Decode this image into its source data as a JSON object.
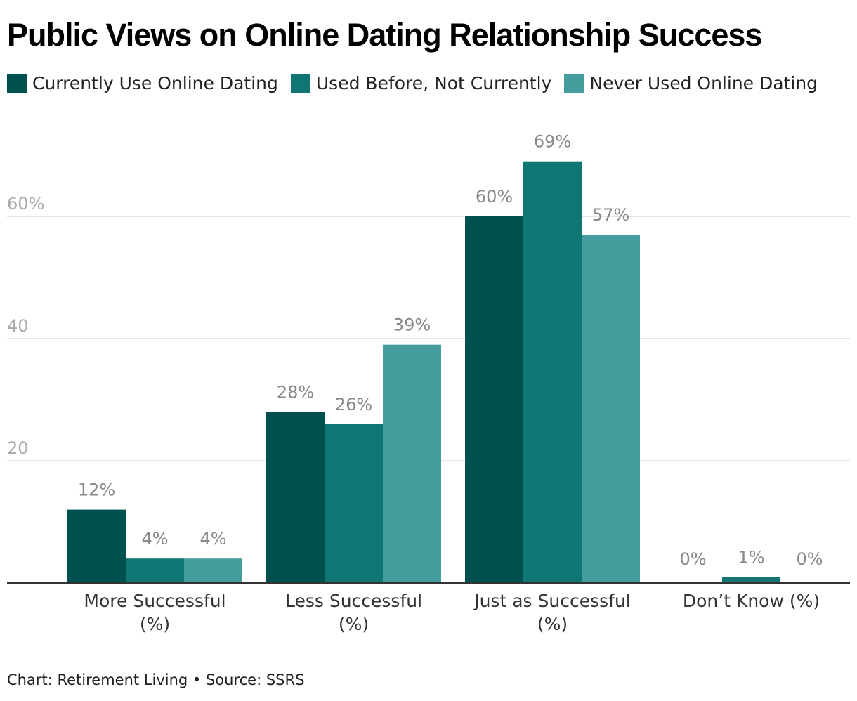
{
  "colors": {
    "current": "#00504f",
    "before": "#107673",
    "never": "#459c9c"
  },
  "chart_data": {
    "type": "bar",
    "title": "Public Views on Online Dating Relationship Success",
    "categories": [
      [
        "More Successful",
        "(%)"
      ],
      [
        "Less Successful",
        "(%)"
      ],
      [
        "Just as Successful",
        "(%)"
      ],
      [
        "Don’t Know (%)"
      ]
    ],
    "series": [
      {
        "name": "Currently Use Online Dating",
        "values": [
          12,
          28,
          60,
          0
        ],
        "labels": [
          "12%",
          "28%",
          "60%",
          "0%"
        ]
      },
      {
        "name": "Used Before, Not Currently",
        "values": [
          4,
          26,
          69,
          1
        ],
        "labels": [
          "4%",
          "26%",
          "69%",
          "1%"
        ]
      },
      {
        "name": "Never Used Online Dating",
        "values": [
          4,
          39,
          57,
          0
        ],
        "labels": [
          "4%",
          "39%",
          "57%",
          "0%"
        ]
      }
    ],
    "yticks": [
      {
        "value": 20,
        "label": "20"
      },
      {
        "value": 40,
        "label": "40"
      },
      {
        "value": 60,
        "label": "60%"
      }
    ],
    "ylim": [
      0,
      80
    ],
    "grid": true,
    "legend": "top-left",
    "xlabel": "",
    "ylabel": ""
  },
  "footer": "Chart: Retirement Living • Source: SSRS"
}
